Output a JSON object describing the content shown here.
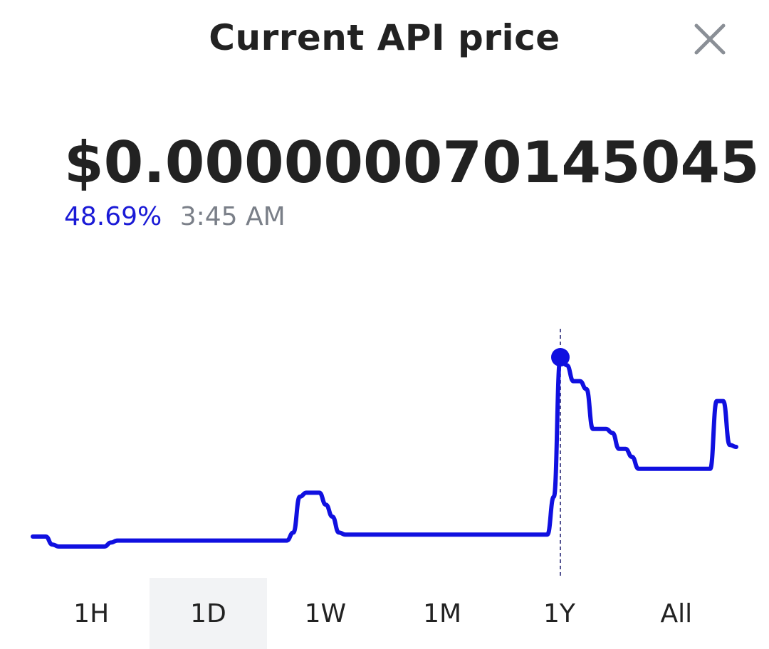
{
  "header": {
    "title": "Current API price"
  },
  "price": {
    "value": "$0.000000070145045",
    "change_percent": "48.69%",
    "time": "3:45 AM"
  },
  "colors": {
    "line": "#1010e0",
    "change": "#1a1ad6",
    "muted": "#7a7f88",
    "text": "#222222",
    "active_tab_bg": "#f2f3f5"
  },
  "icons": {
    "close": "close-icon"
  },
  "chart_data": {
    "type": "line",
    "series_relative": [
      0.1,
      0.1,
      0.1,
      0.06,
      0.05,
      0.05,
      0.05,
      0.05,
      0.05,
      0.05,
      0.05,
      0.05,
      0.07,
      0.08,
      0.08,
      0.08,
      0.08,
      0.08,
      0.08,
      0.08,
      0.08,
      0.08,
      0.08,
      0.08,
      0.08,
      0.08,
      0.08,
      0.08,
      0.08,
      0.08,
      0.08,
      0.08,
      0.08,
      0.08,
      0.08,
      0.08,
      0.08,
      0.08,
      0.08,
      0.08,
      0.12,
      0.3,
      0.32,
      0.32,
      0.32,
      0.26,
      0.2,
      0.12,
      0.11,
      0.11,
      0.11,
      0.11,
      0.11,
      0.11,
      0.11,
      0.11,
      0.11,
      0.11,
      0.11,
      0.11,
      0.11,
      0.11,
      0.11,
      0.11,
      0.11,
      0.11,
      0.11,
      0.11,
      0.11,
      0.11,
      0.11,
      0.11,
      0.11,
      0.11,
      0.11,
      0.11,
      0.11,
      0.11,
      0.11,
      0.11,
      0.3,
      1.0,
      0.96,
      0.88,
      0.88,
      0.84,
      0.64,
      0.64,
      0.64,
      0.62,
      0.54,
      0.54,
      0.5,
      0.44,
      0.44,
      0.44,
      0.44,
      0.44,
      0.44,
      0.44,
      0.44,
      0.44,
      0.44,
      0.44,
      0.44,
      0.78,
      0.78,
      0.56,
      0.55
    ],
    "highlight_index": 81,
    "selected_range": "1D",
    "ranges": [
      "1H",
      "1D",
      "1W",
      "1M",
      "1Y",
      "All"
    ]
  }
}
